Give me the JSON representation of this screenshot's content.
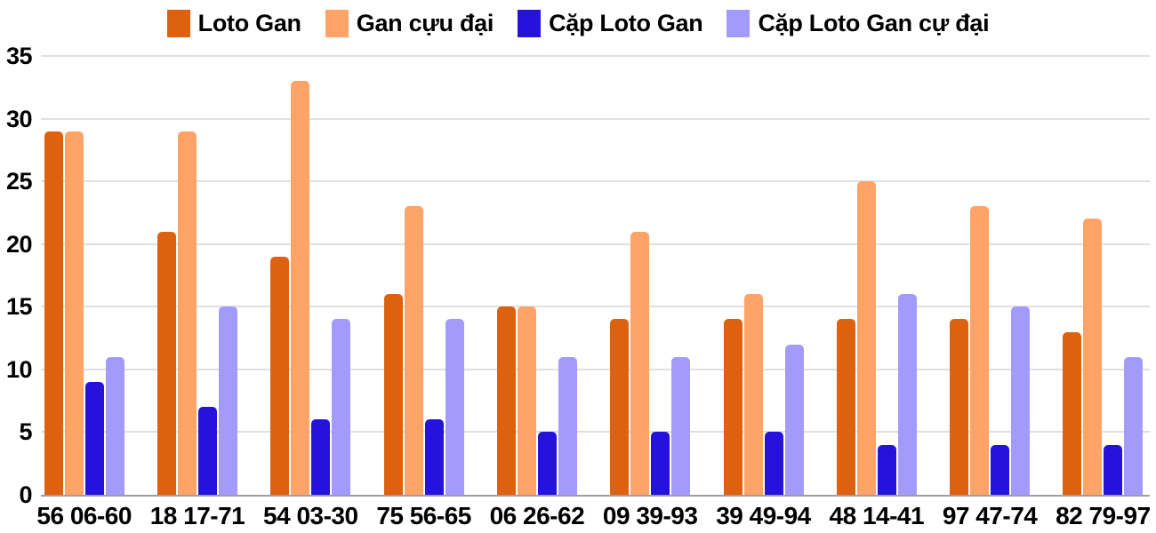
{
  "chart_data": {
    "type": "bar",
    "title": "",
    "categories": [
      "56 06-60",
      "18 17-71",
      "54 03-30",
      "75 56-65",
      "06 26-62",
      "09 39-93",
      "39 49-94",
      "48 14-41",
      "97 47-74",
      "82 79-97"
    ],
    "series": [
      {
        "name": "Loto Gan",
        "color": "#DD610F",
        "values": [
          29,
          21,
          19,
          16,
          15,
          14,
          14,
          14,
          14,
          13
        ]
      },
      {
        "name": "Gan cựu đại",
        "color": "#FFA366",
        "values": [
          29,
          29,
          33,
          23,
          15,
          21,
          16,
          25,
          23,
          22
        ]
      },
      {
        "name": "Cặp Loto Gan",
        "color": "#2513DB",
        "values": [
          9,
          7,
          6,
          6,
          5,
          5,
          5,
          4,
          4,
          4
        ]
      },
      {
        "name": "Cặp Loto Gan cự đại",
        "color": "#A39BFC",
        "values": [
          11,
          15,
          14,
          14,
          11,
          11,
          12,
          16,
          15,
          11
        ]
      }
    ],
    "xlabel": "",
    "ylabel": "",
    "ylim": [
      0,
      35
    ],
    "yticks": [
      0,
      5,
      10,
      15,
      20,
      25,
      30,
      35
    ],
    "grid": true,
    "legend_position": "top"
  },
  "colors": {
    "background": "#FFFFFF",
    "gridline": "#E0E0E0",
    "baseline": "#9E9E9E",
    "text": "#000000"
  }
}
